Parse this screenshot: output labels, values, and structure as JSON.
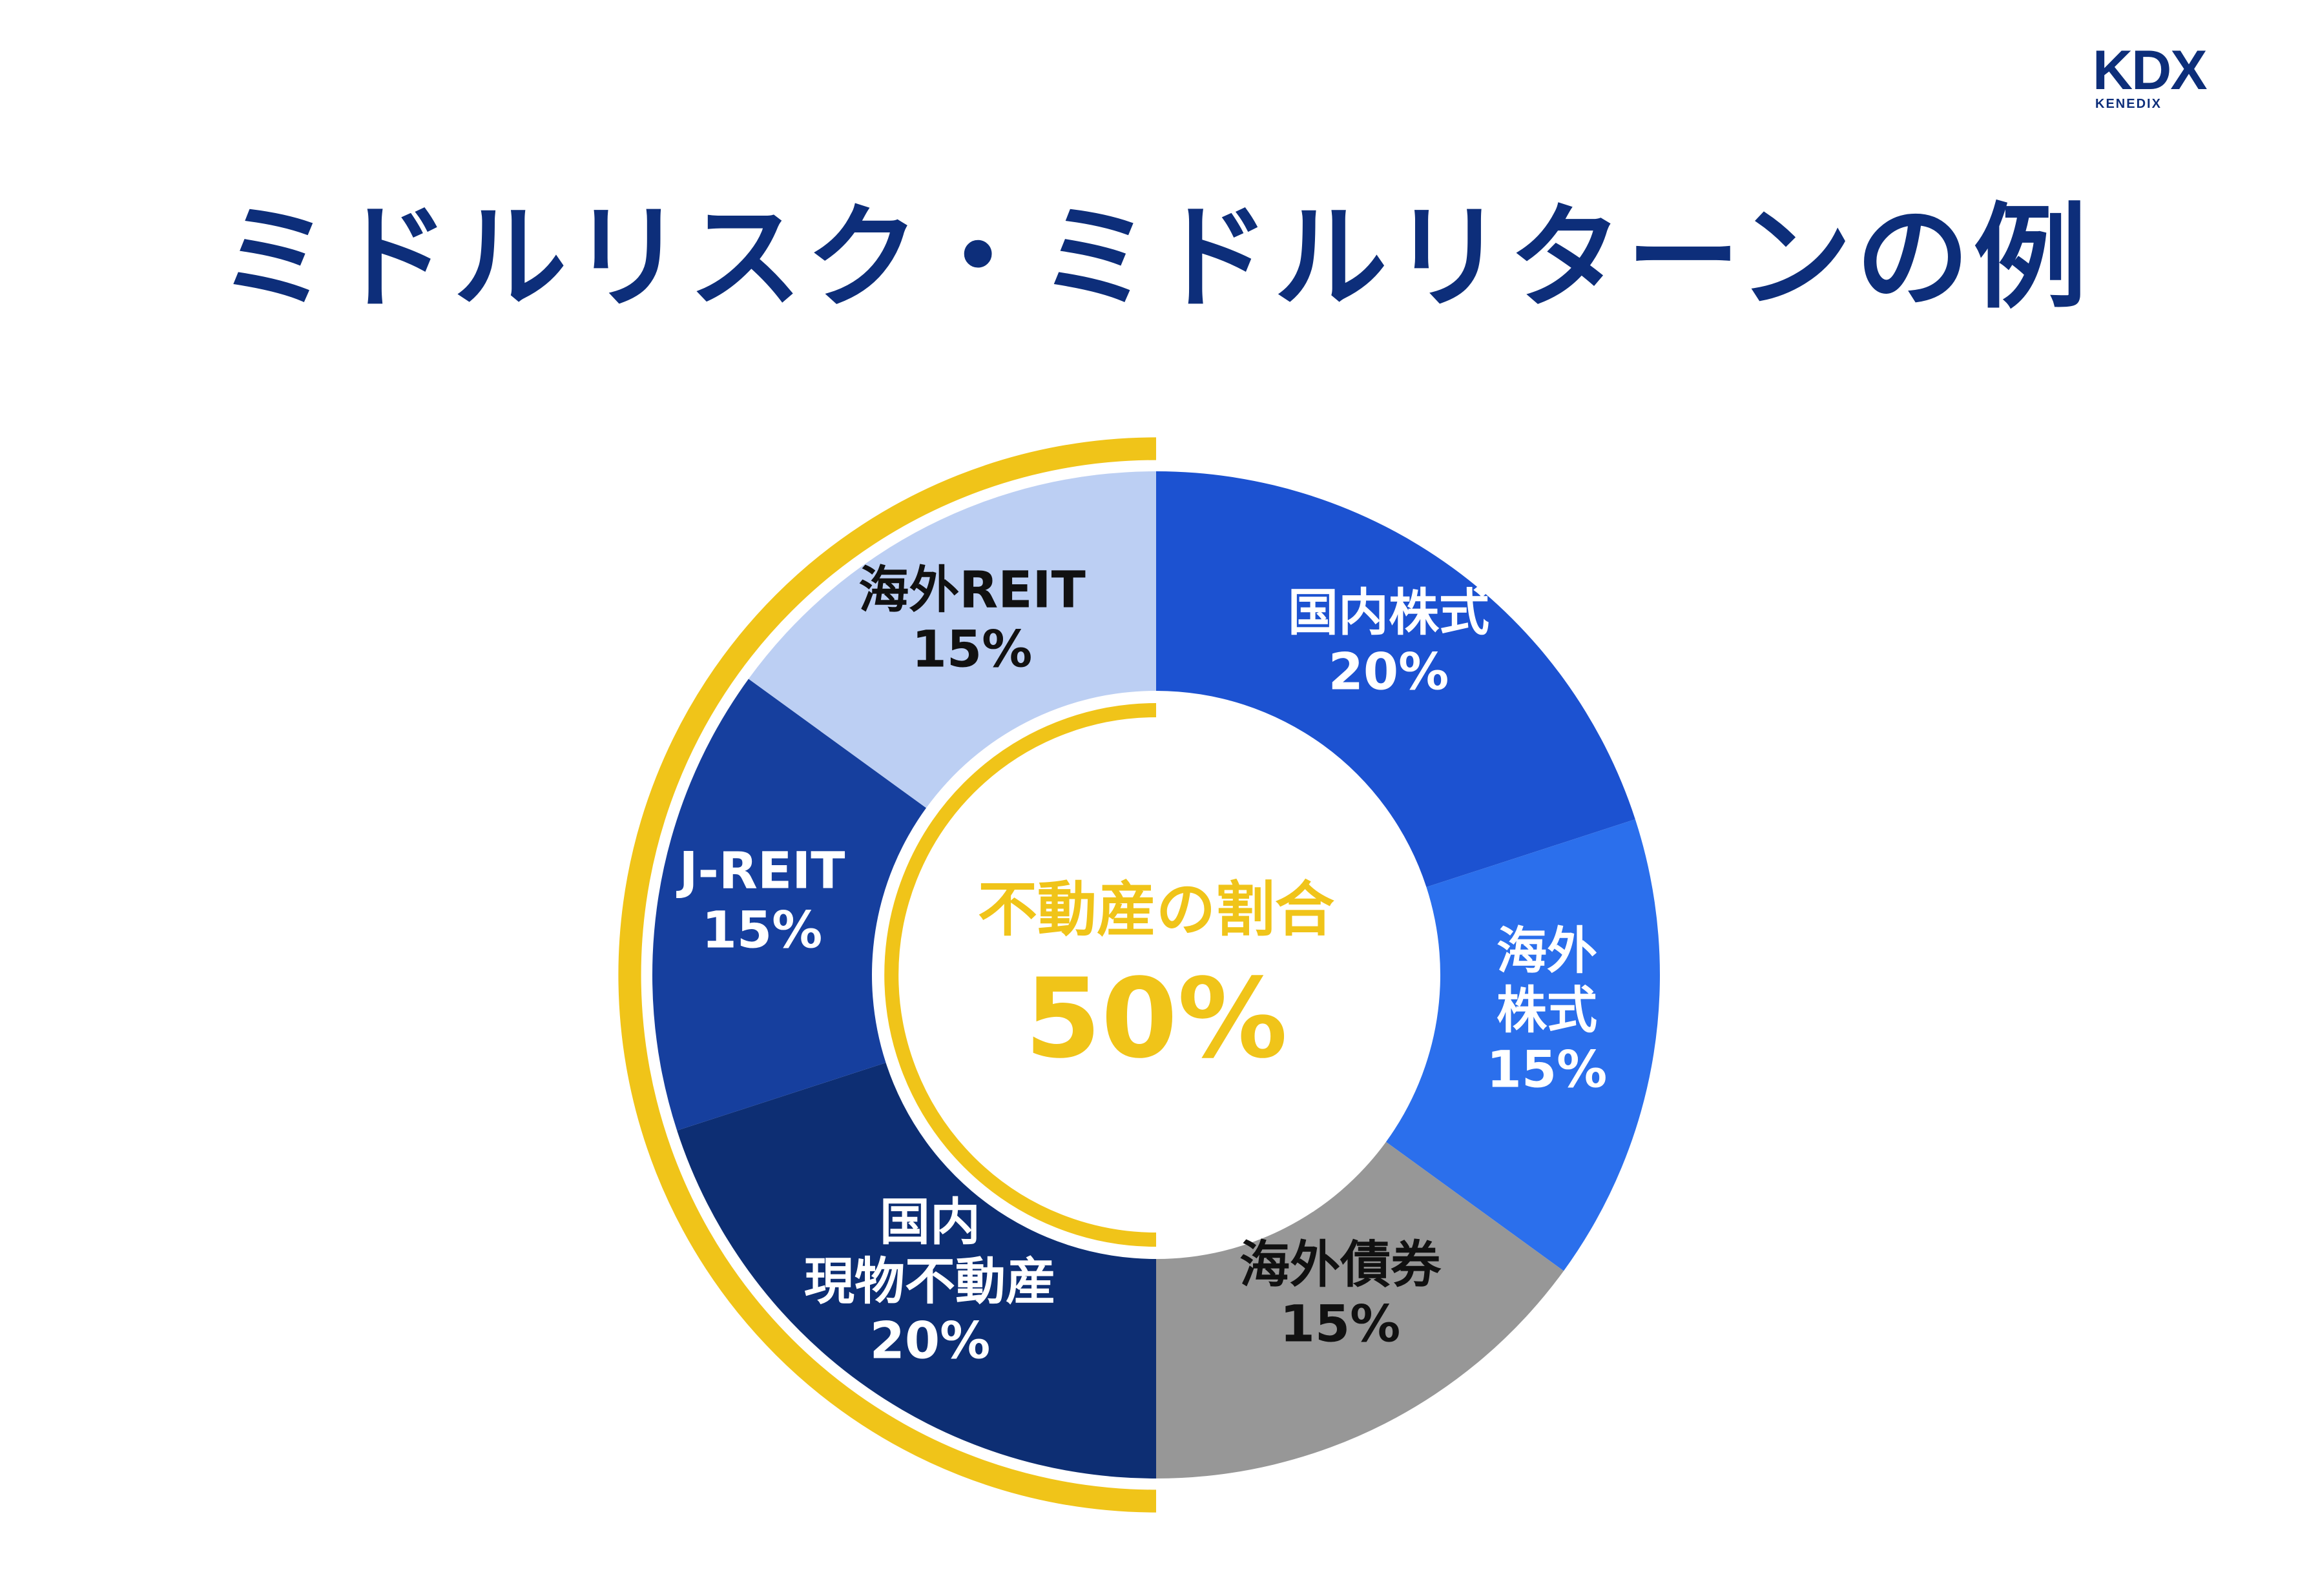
{
  "logo": {
    "main": "KDX",
    "sub": "KENEDIX"
  },
  "title": "ミドルリスク・ミドルリターンの例",
  "colors": {
    "title": "#0d2e7a",
    "accent_ring": "#f0c419",
    "center_text": "#f0c419"
  },
  "chart_data": {
    "type": "pie",
    "variant": "donut",
    "title": "ミドルリスク・ミドルリターンの例",
    "unit": "%",
    "slices": [
      {
        "lines": [
          "国内株式"
        ],
        "value": 20,
        "value_label": "20%",
        "color": "#1c52d1",
        "text_color": "#ffffff"
      },
      {
        "lines": [
          "海外",
          "株式"
        ],
        "value": 15,
        "value_label": "15%",
        "color": "#2b6fec",
        "text_color": "#ffffff"
      },
      {
        "lines": [
          "海外債券"
        ],
        "value": 15,
        "value_label": "15%",
        "color": "#979797",
        "text_color": "#111111"
      },
      {
        "lines": [
          "国内",
          "現物不動産"
        ],
        "value": 20,
        "value_label": "20%",
        "color": "#0d2e73",
        "text_color": "#ffffff"
      },
      {
        "lines": [
          "J-REIT"
        ],
        "value": 15,
        "value_label": "15%",
        "color": "#163f9e",
        "text_color": "#ffffff"
      },
      {
        "lines": [
          "海外REIT"
        ],
        "value": 15,
        "value_label": "15%",
        "color": "#bccff3",
        "text_color": "#111111"
      }
    ],
    "highlight": {
      "label": "不動産の割合",
      "value": 50,
      "value_label": "50%",
      "covers": [
        "国内現物不動産",
        "J-REIT",
        "海外REIT"
      ]
    }
  }
}
